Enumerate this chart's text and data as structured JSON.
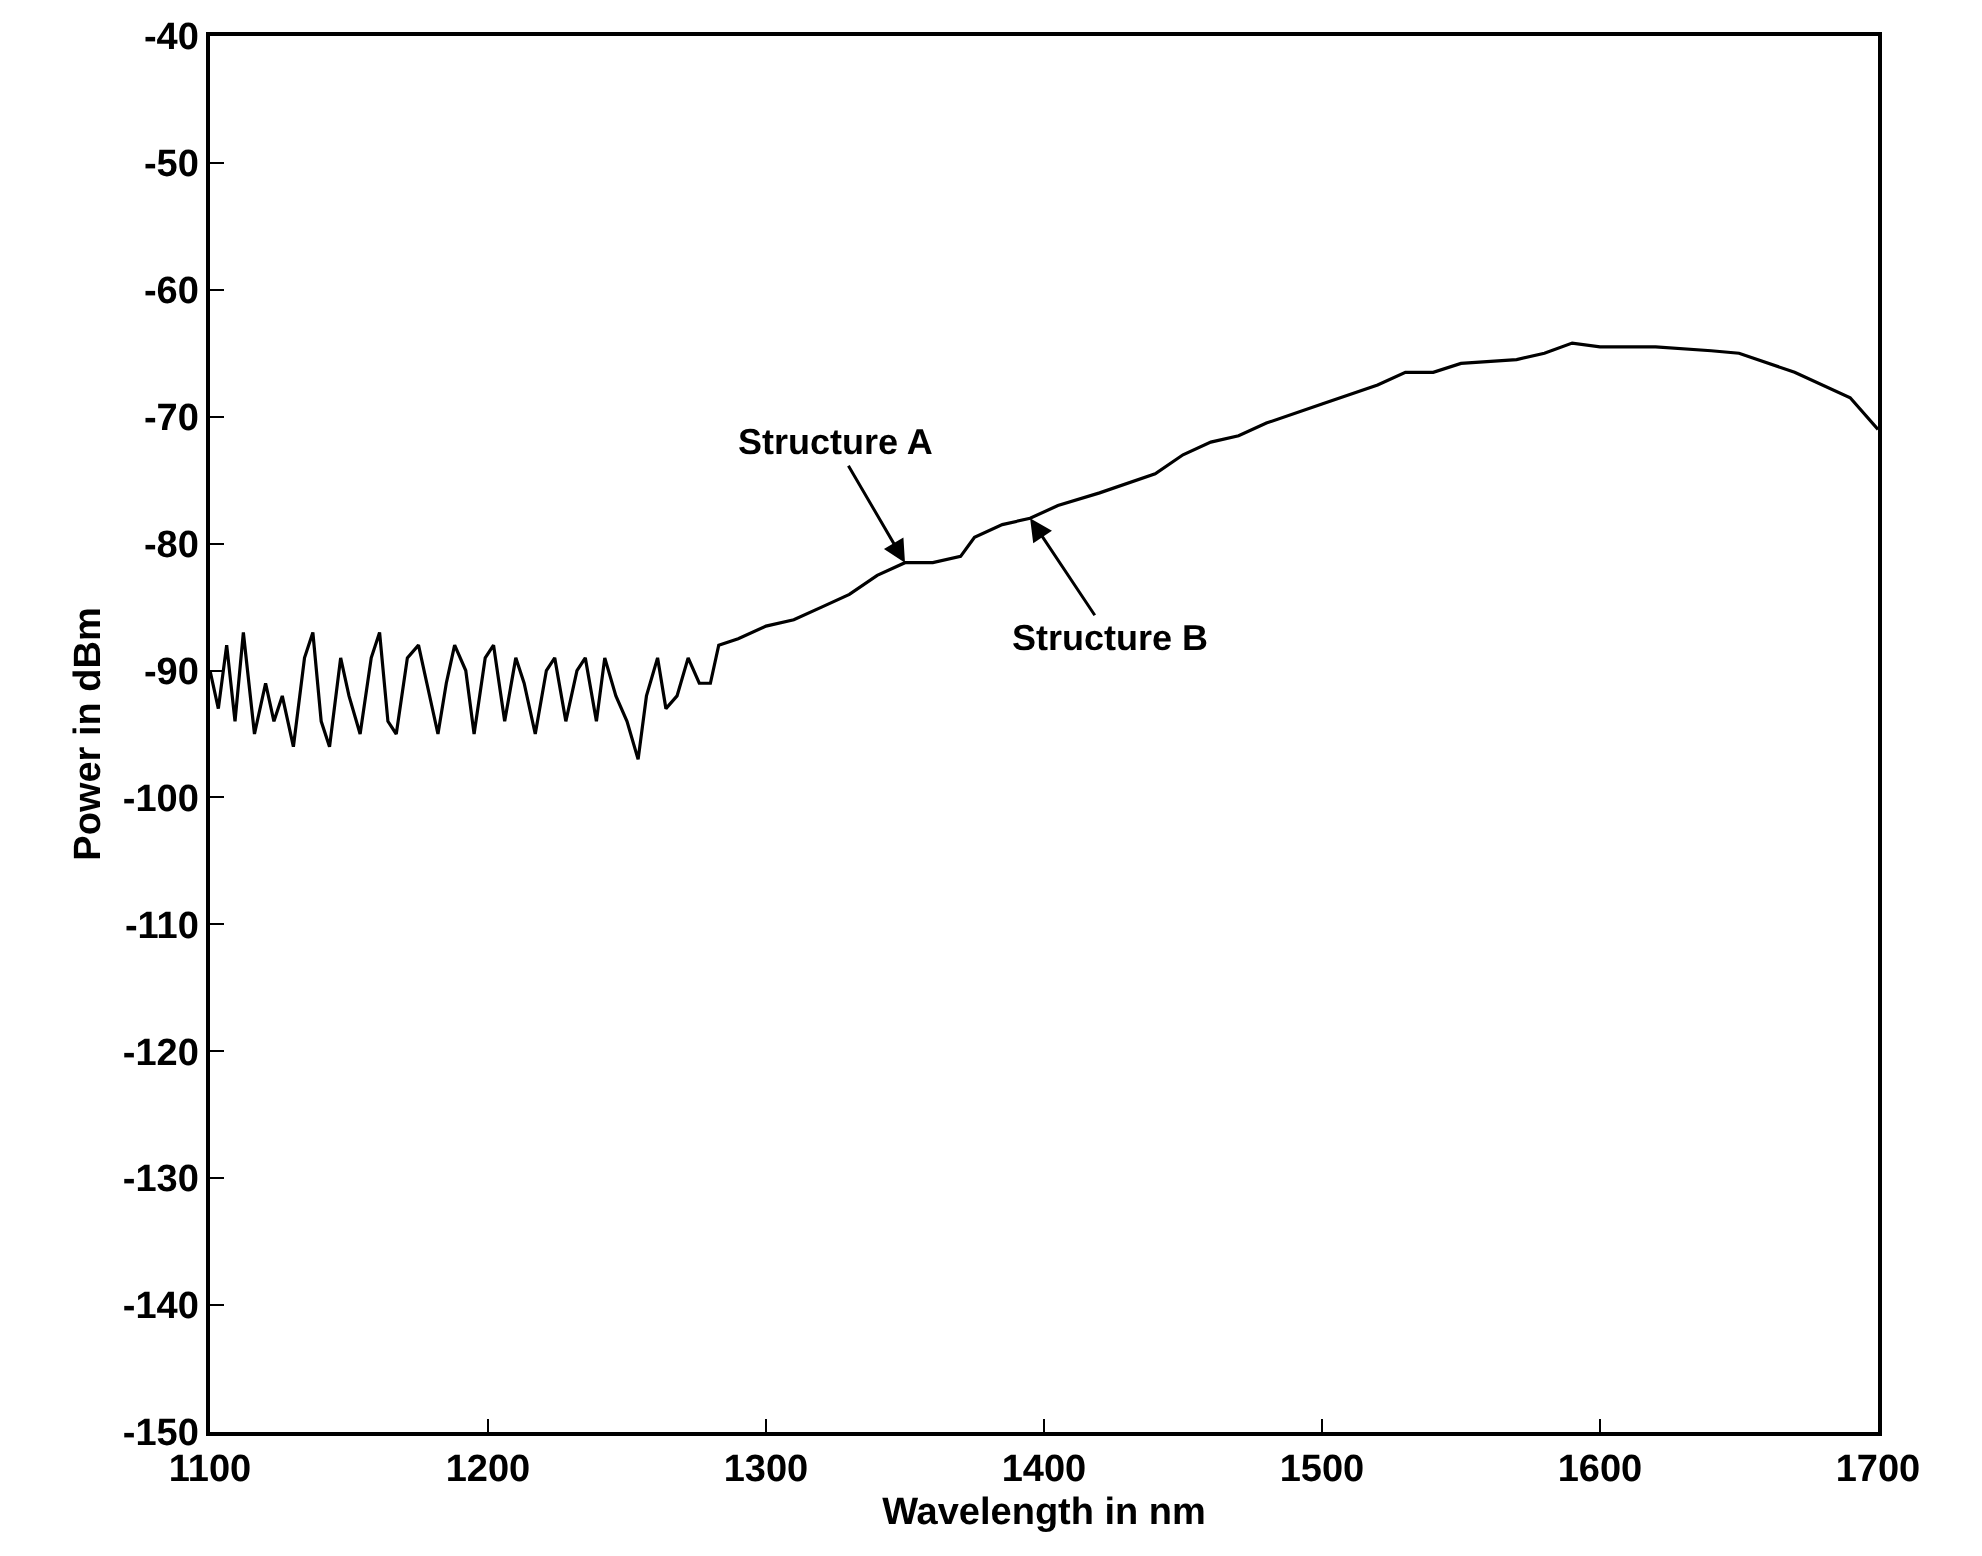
{
  "chart_data": {
    "type": "line",
    "xlabel": "Wavelength in nm",
    "ylabel": "Power in dBm",
    "x": [
      1100,
      1103,
      1106,
      1109,
      1112,
      1116,
      1120,
      1123,
      1126,
      1130,
      1134,
      1137,
      1140,
      1143,
      1147,
      1150,
      1154,
      1158,
      1161,
      1164,
      1167,
      1171,
      1175,
      1178,
      1182,
      1185,
      1188,
      1192,
      1195,
      1199,
      1202,
      1206,
      1210,
      1213,
      1217,
      1221,
      1224,
      1228,
      1232,
      1235,
      1239,
      1242,
      1246,
      1250,
      1254,
      1257,
      1261,
      1264,
      1268,
      1272,
      1276,
      1280,
      1283,
      1290,
      1300,
      1310,
      1320,
      1330,
      1340,
      1350,
      1360,
      1370,
      1375,
      1385,
      1395,
      1405,
      1420,
      1440,
      1450,
      1460,
      1470,
      1480,
      1500,
      1520,
      1530,
      1540,
      1550,
      1570,
      1580,
      1590,
      1600,
      1620,
      1640,
      1650,
      1670,
      1690,
      1700
    ],
    "series": [
      {
        "color": "#000000",
        "values": [
          -90,
          -93,
          -88,
          -94,
          -87,
          -95,
          -91,
          -94,
          -92,
          -96,
          -89,
          -87,
          -94,
          -96,
          -89,
          -92,
          -95,
          -89,
          -87,
          -94,
          -95,
          -89,
          -88,
          -91,
          -95,
          -91,
          -88,
          -90,
          -95,
          -89,
          -88,
          -94,
          -89,
          -91,
          -95,
          -90,
          -89,
          -94,
          -90,
          -89,
          -94,
          -89,
          -92,
          -94,
          -97,
          -92,
          -89,
          -93,
          -92,
          -89,
          -91,
          -91,
          -88,
          -87.5,
          -86.5,
          -86,
          -85,
          -84,
          -82.5,
          -81.5,
          -81.5,
          -81,
          -79.5,
          -78.5,
          -78,
          -77,
          -76,
          -74.5,
          -73,
          -72,
          -71.5,
          -70.5,
          -69,
          -67.5,
          -66.5,
          -66.5,
          -65.8,
          -65.5,
          -65,
          -64.2,
          -64.5,
          -64.5,
          -64.8,
          -65,
          -66.5,
          -68.5,
          -71
        ]
      }
    ],
    "xlim": [
      1100,
      1700
    ],
    "xticks": [
      1100,
      1200,
      1300,
      1400,
      1500,
      1600,
      1700
    ],
    "ylim": [
      -150,
      -40
    ],
    "yticks": [
      -150,
      -140,
      -130,
      -120,
      -110,
      -100,
      -90,
      -80,
      -70,
      -60,
      -50,
      -40
    ],
    "grid": false,
    "marker": "none",
    "line_style": "solid",
    "annotations": [
      {
        "text": "Structure A",
        "x": 1350,
        "y": -81.5
      },
      {
        "text": "Structure B",
        "x": 1395,
        "y": -78
      }
    ]
  }
}
